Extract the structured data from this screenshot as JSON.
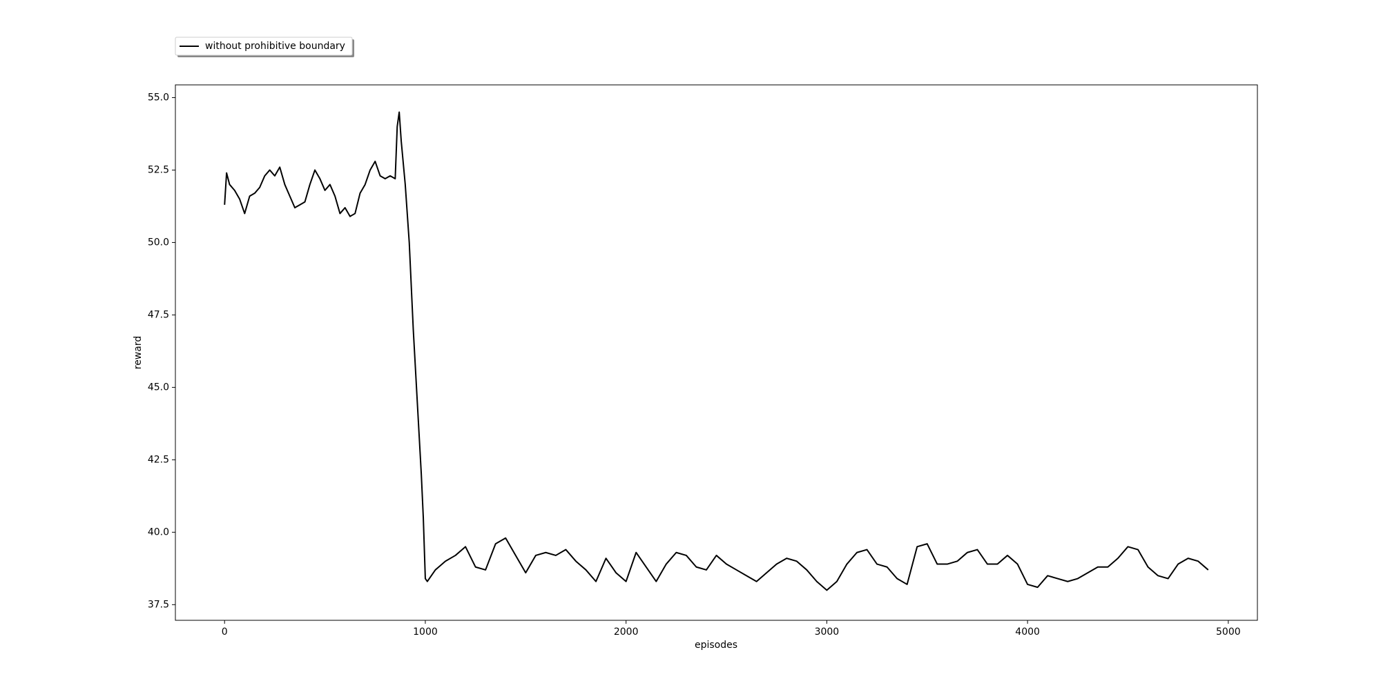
{
  "chart_data": {
    "type": "line",
    "xlabel": "episodes",
    "ylabel": "reward",
    "x": [
      0,
      10,
      25,
      50,
      75,
      100,
      125,
      150,
      175,
      200,
      225,
      250,
      275,
      300,
      325,
      350,
      375,
      400,
      425,
      450,
      475,
      500,
      525,
      550,
      575,
      600,
      625,
      650,
      675,
      700,
      725,
      750,
      775,
      800,
      825,
      850,
      860,
      870,
      880,
      900,
      920,
      940,
      960,
      980,
      990,
      1000,
      1010,
      1050,
      1100,
      1150,
      1200,
      1250,
      1300,
      1350,
      1400,
      1450,
      1500,
      1550,
      1600,
      1650,
      1700,
      1750,
      1800,
      1850,
      1900,
      1950,
      2000,
      2050,
      2100,
      2150,
      2200,
      2250,
      2300,
      2350,
      2400,
      2450,
      2500,
      2550,
      2600,
      2650,
      2700,
      2750,
      2800,
      2850,
      2900,
      2950,
      3000,
      3050,
      3100,
      3150,
      3200,
      3250,
      3300,
      3350,
      3400,
      3450,
      3500,
      3550,
      3600,
      3650,
      3700,
      3750,
      3800,
      3850,
      3900,
      3950,
      4000,
      4050,
      4100,
      4150,
      4200,
      4250,
      4300,
      4350,
      4400,
      4450,
      4500,
      4550,
      4600,
      4650,
      4700,
      4750,
      4800,
      4850,
      4900
    ],
    "series": [
      {
        "name": "without prohibitive boundary",
        "color": "#000000",
        "values": [
          51.3,
          52.4,
          52.0,
          51.8,
          51.5,
          51.0,
          51.6,
          51.7,
          51.9,
          52.3,
          52.5,
          52.3,
          52.6,
          52.0,
          51.6,
          51.2,
          51.3,
          51.4,
          52.0,
          52.5,
          52.2,
          51.8,
          52.0,
          51.6,
          51.0,
          51.2,
          50.9,
          51.0,
          51.7,
          52.0,
          52.5,
          52.8,
          52.3,
          52.2,
          52.3,
          52.2,
          54.0,
          54.5,
          53.5,
          52.0,
          50.0,
          47.0,
          44.5,
          42.0,
          40.5,
          38.4,
          38.3,
          38.7,
          39.0,
          39.2,
          39.5,
          38.8,
          38.7,
          39.6,
          39.8,
          39.2,
          38.6,
          39.2,
          39.3,
          39.2,
          39.4,
          39.0,
          38.7,
          38.3,
          39.1,
          38.6,
          38.3,
          39.3,
          38.8,
          38.3,
          38.9,
          39.3,
          39.2,
          38.8,
          38.7,
          39.2,
          38.9,
          38.7,
          38.5,
          38.3,
          38.6,
          38.9,
          39.1,
          39.0,
          38.7,
          38.3,
          38.0,
          38.3,
          38.9,
          39.3,
          39.4,
          38.9,
          38.8,
          38.4,
          38.2,
          39.5,
          39.6,
          38.9,
          38.9,
          39.0,
          39.3,
          39.4,
          38.9,
          38.9,
          39.2,
          38.9,
          38.2,
          38.1,
          38.5,
          38.4,
          38.3,
          38.4,
          38.6,
          38.8,
          38.8,
          39.1,
          39.5,
          39.4,
          38.8,
          38.5,
          38.4,
          38.9,
          39.1,
          39.0,
          38.7
        ]
      }
    ],
    "xlim": [
      -245,
      5145
    ],
    "xticks": [
      0,
      1000,
      2000,
      3000,
      4000,
      5000
    ],
    "ylim": [
      36.96,
      55.44
    ],
    "yticks": [
      {
        "value": 37.5,
        "label": "37.5"
      },
      {
        "value": 40,
        "label": "40.0"
      },
      {
        "value": 42.5,
        "label": "42.5"
      },
      {
        "value": 45,
        "label": "45.0"
      },
      {
        "value": 47.5,
        "label": "47.5"
      },
      {
        "value": 50,
        "label": "50.0"
      },
      {
        "value": 52.5,
        "label": "52.5"
      },
      {
        "value": 55,
        "label": "55.0"
      }
    ],
    "legend": "upper left outside"
  }
}
